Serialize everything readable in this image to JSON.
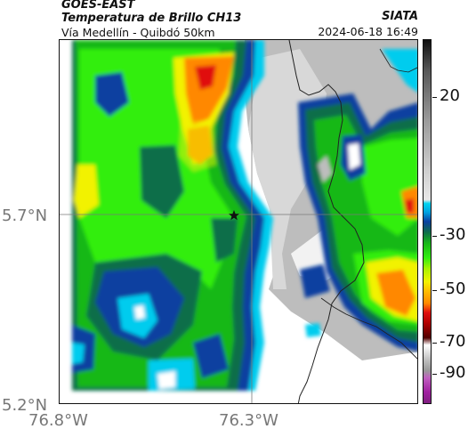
{
  "header": {
    "source": "GOES-EAST",
    "product": "Temperatura de Brillo CH13",
    "area": "Vía Medellín - Quibdó 50km",
    "organization": "SIATA",
    "timestamp": "2024-06-18 16:49"
  },
  "map": {
    "lat_labels": [
      "5.7°N",
      "5.2°N"
    ],
    "lon_labels": [
      "76.8°W",
      "76.3°W"
    ],
    "marker": {
      "name": "star-marker",
      "lat": 5.7,
      "lon": -76.32
    }
  },
  "colorbar": {
    "labels": [
      "20",
      "-30",
      "-50",
      "-70",
      "-90"
    ],
    "units_hint": "brightness temperature °C",
    "colors": {
      "warm": "#ffffff",
      "gray": "#b4b4b4",
      "cyan": "#00ccee",
      "blue": "#0b3fa0",
      "dark_green": "#0f6e4a",
      "green": "#18b818",
      "lime": "#33ee11",
      "yellow": "#f2f200",
      "orange": "#ff8800",
      "red": "#e01010",
      "dark_red": "#700000",
      "magenta": "#c040c0"
    }
  }
}
